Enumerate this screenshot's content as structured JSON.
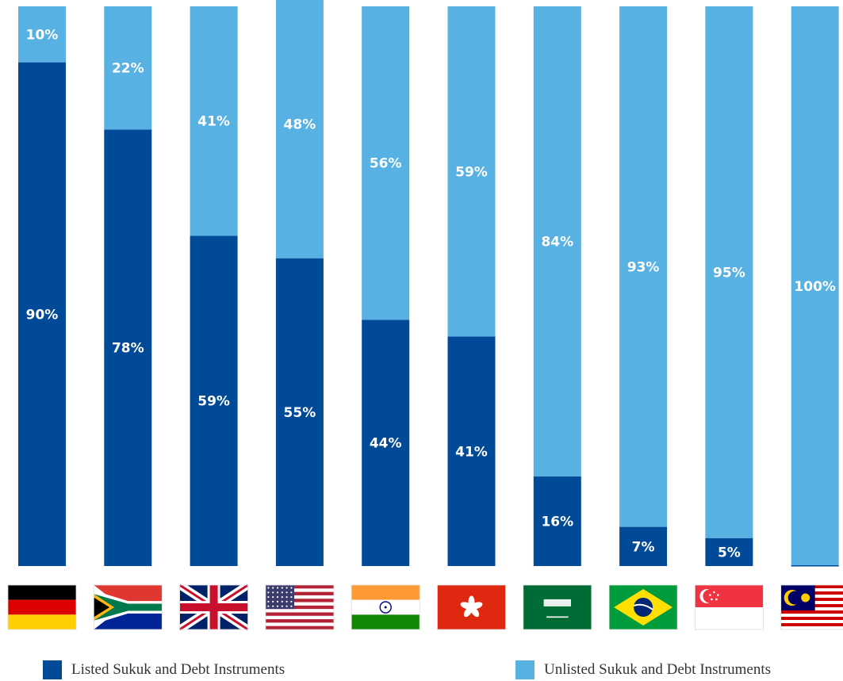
{
  "chart_data": {
    "type": "bar",
    "stacked": true,
    "categories": [
      "germany-flag",
      "south-africa-flag",
      "uk-flag",
      "usa-flag",
      "india-flag",
      "hong-kong-flag",
      "saudi-arabia-flag",
      "brazil-flag",
      "singapore-flag",
      "malaysia-flag"
    ],
    "series": [
      {
        "name": "Listed Sukuk and Debt Instruments",
        "color": "#004A98",
        "values": [
          90,
          78,
          59,
          55,
          44,
          41,
          16,
          7,
          5,
          0
        ],
        "labels": [
          "90%",
          "78%",
          "59%",
          "55%",
          "44%",
          "41%",
          "16%",
          "7%",
          "5%",
          ""
        ]
      },
      {
        "name": "Unlisted Sukuk and Debt Instruments",
        "color": "#57B1E3",
        "values": [
          10,
          22,
          41,
          48,
          56,
          59,
          84,
          93,
          95,
          100
        ],
        "labels": [
          "10%",
          "22%",
          "41%",
          "48%",
          "56%",
          "59%",
          "84%",
          "93%",
          "95%",
          "100%"
        ]
      }
    ],
    "ylim": [
      0,
      100
    ],
    "grid": false,
    "legend_position": "bottom"
  },
  "legend": {
    "listed": "Listed Sukuk and Debt Instruments",
    "unlisted": "Unlisted Sukuk and Debt Instruments"
  },
  "colors": {
    "listed": "#004A98",
    "unlisted": "#57B1E3"
  }
}
